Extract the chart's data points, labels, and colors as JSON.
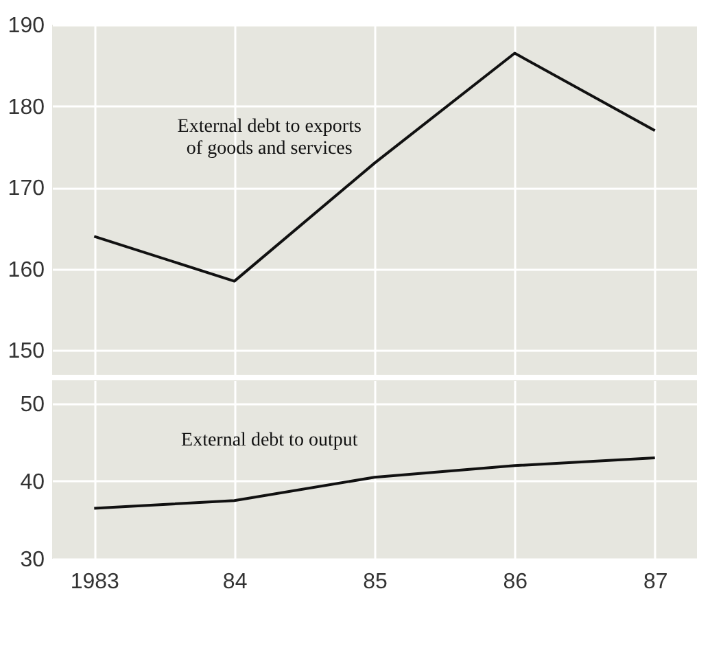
{
  "chart_data": [
    {
      "type": "line",
      "x": [
        1983,
        1984,
        1985,
        1986,
        1987
      ],
      "series": [
        {
          "name": "External debt to exports\nof goods and services",
          "color": "#111111",
          "values": [
            164,
            158.5,
            173,
            186.5,
            177
          ]
        }
      ],
      "xlim": [
        1982.7,
        1987.3
      ],
      "xticks": [
        {
          "value": 1983,
          "label": null
        },
        {
          "value": 1984,
          "label": null
        },
        {
          "value": 1985,
          "label": null
        },
        {
          "value": 1986,
          "label": null
        },
        {
          "value": 1987,
          "label": null
        }
      ],
      "ylim": [
        147,
        190
      ],
      "yticks": [
        150,
        160,
        170,
        180,
        190
      ],
      "grid": true,
      "tick_labels": "y"
    },
    {
      "type": "line",
      "x": [
        1983,
        1984,
        1985,
        1986,
        1987
      ],
      "series": [
        {
          "name": "External debt to output",
          "color": "#111111",
          "values": [
            36.5,
            37.5,
            40.5,
            42,
            43
          ]
        }
      ],
      "xlim": [
        1982.7,
        1987.3
      ],
      "xticks": [
        {
          "value": 1983,
          "label": "1983"
        },
        {
          "value": 1984,
          "label": "84"
        },
        {
          "value": 1985,
          "label": "85"
        },
        {
          "value": 1986,
          "label": "86"
        },
        {
          "value": 1987,
          "label": "87"
        }
      ],
      "ylim": [
        30,
        53
      ],
      "yticks": [
        30,
        40,
        50
      ],
      "grid": true
    }
  ]
}
